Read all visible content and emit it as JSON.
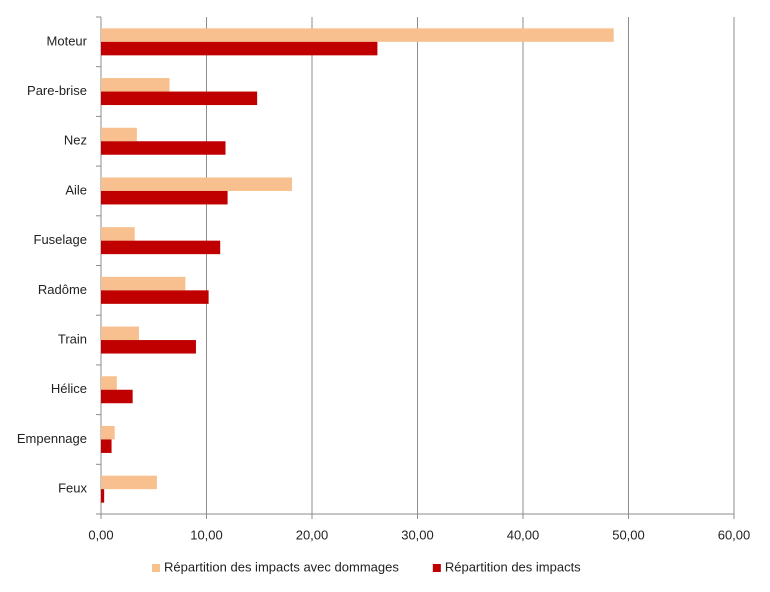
{
  "chart_data": {
    "type": "hbar",
    "categories": [
      "Moteur",
      "Pare-brise",
      "Nez",
      "Aile",
      "Fuselage",
      "Radôme",
      "Train",
      "Hélice",
      "Empennage",
      "Feux"
    ],
    "series": [
      {
        "name": "Répartition des impacts avec dommages",
        "color": "#f9c08f",
        "values": [
          48.6,
          6.5,
          3.4,
          18.1,
          3.2,
          8.0,
          3.6,
          1.5,
          1.3,
          5.3
        ]
      },
      {
        "name": "Répartition des impacts",
        "color": "#c00000",
        "values": [
          26.2,
          14.8,
          11.8,
          12.0,
          11.3,
          10.2,
          9.0,
          3.0,
          1.0,
          0.3
        ]
      }
    ],
    "xlim": [
      0,
      60
    ],
    "xticks": [
      {
        "value": 0,
        "label": "0,00"
      },
      {
        "value": 10,
        "label": "10,00"
      },
      {
        "value": 20,
        "label": "20,00"
      },
      {
        "value": 30,
        "label": "30,00"
      },
      {
        "value": 40,
        "label": "40,00"
      },
      {
        "value": 50,
        "label": "50,00"
      },
      {
        "value": 60,
        "label": "60,00"
      }
    ],
    "grid": true,
    "legend": "bottom"
  }
}
